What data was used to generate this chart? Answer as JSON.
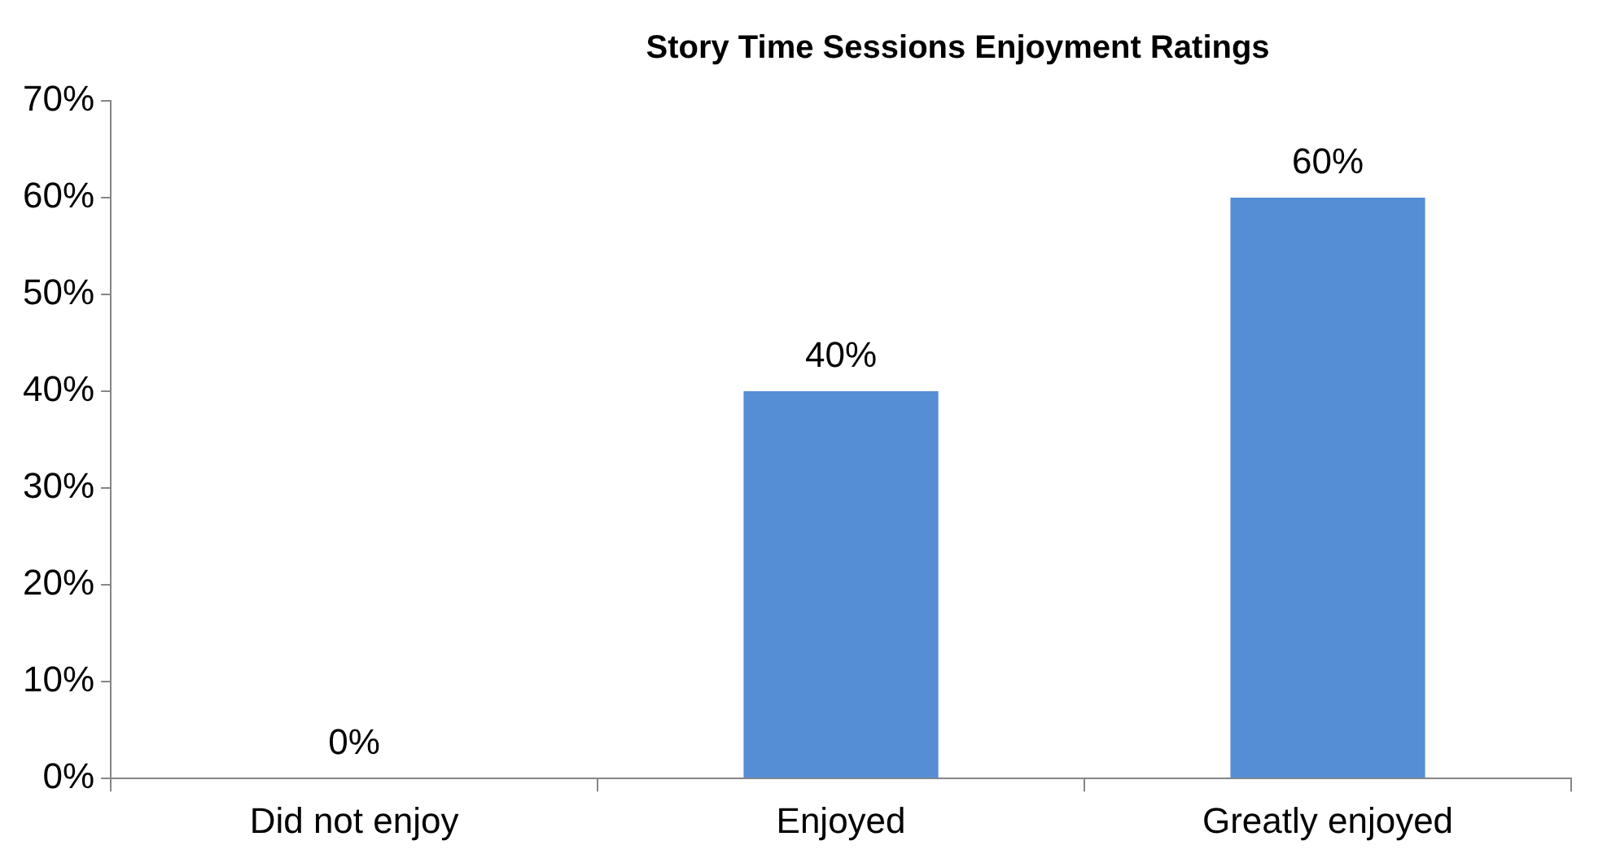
{
  "chart_data": {
    "type": "bar",
    "title": "Story Time Sessions Enjoyment Ratings",
    "categories": [
      "Did not enjoy",
      "Enjoyed",
      "Greatly enjoyed"
    ],
    "values": [
      0,
      40,
      60
    ],
    "value_labels": [
      "0%",
      "40%",
      "60%"
    ],
    "color": "#558ed5",
    "ylim": [
      0,
      70
    ],
    "yticks": [
      {
        "value": 0,
        "label": "0%"
      },
      {
        "value": 10,
        "label": "10%"
      },
      {
        "value": 20,
        "label": "20%"
      },
      {
        "value": 30,
        "label": "30%"
      },
      {
        "value": 40,
        "label": "40%"
      },
      {
        "value": 50,
        "label": "50%"
      },
      {
        "value": 60,
        "label": "60%"
      },
      {
        "value": 70,
        "label": "70%"
      }
    ],
    "grid": false,
    "legend": false
  }
}
